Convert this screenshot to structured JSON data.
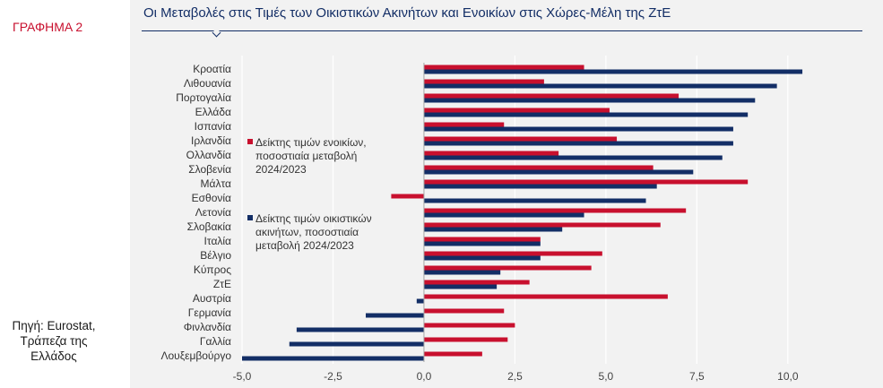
{
  "figure_label": "ΓΡΑΦΗΜΑ 2",
  "source": "Πηγή: Eurostat, Τράπεζα της Ελλάδος",
  "colors": {
    "rent": "#c8102e",
    "house": "#132e66",
    "title": "#132e66",
    "panel": "#f2f2f2"
  },
  "chart_data": {
    "type": "bar",
    "orientation": "horizontal",
    "title": "Οι Μεταβολές στις Τιμές των Οικιστικών Ακινήτων και Ενοικίων στις Χώρες-Μέλη της ΖτΕ",
    "xlabel": "",
    "ylabel": "",
    "xlim": [
      -5.0,
      12.0
    ],
    "xticks": [
      -5.0,
      -2.5,
      0.0,
      2.5,
      5.0,
      7.5,
      10.0
    ],
    "xtick_labels": [
      "-5,0",
      "-2,5",
      "0,0",
      "2,5",
      "5,0",
      "7,5",
      "10,0"
    ],
    "grid": true,
    "legend_placement": "middle-left, inside plot",
    "categories": [
      "Κροατία",
      "Λιθουανία",
      "Πορτογαλία",
      "Ελλάδα",
      "Ισπανία",
      "Ιρλανδία",
      "Ολλανδία",
      "Σλοβενία",
      "Μάλτα",
      "Εσθονία",
      "Λετονία",
      "Σλοβακία",
      "Ιταλία",
      "Βέλγιο",
      "Κύπρος",
      "ΖτΕ",
      "Αυστρία",
      "Γερμανία",
      "Φινλανδία",
      "Γαλλία",
      "Λουξεμβούργο"
    ],
    "series": [
      {
        "name": "Δείκτης τιμών ενοικίων, ποσοστιαία μεταβολή 2024/2023",
        "values": [
          4.4,
          3.3,
          7.0,
          5.1,
          2.2,
          5.3,
          3.7,
          6.3,
          8.9,
          -0.9,
          7.2,
          6.5,
          3.2,
          4.9,
          4.6,
          2.9,
          6.7,
          2.2,
          2.5,
          2.3,
          1.6
        ]
      },
      {
        "name": "Δείκτης τιμών οικιστικών ακινήτων, ποσοστιαία μεταβολή 2024/2023",
        "values": [
          10.4,
          9.7,
          9.1,
          8.9,
          8.5,
          8.5,
          8.2,
          7.4,
          6.4,
          6.1,
          4.4,
          3.8,
          3.2,
          3.2,
          2.1,
          2.0,
          -0.2,
          -1.6,
          -3.5,
          -3.7,
          -5.0
        ]
      }
    ]
  }
}
